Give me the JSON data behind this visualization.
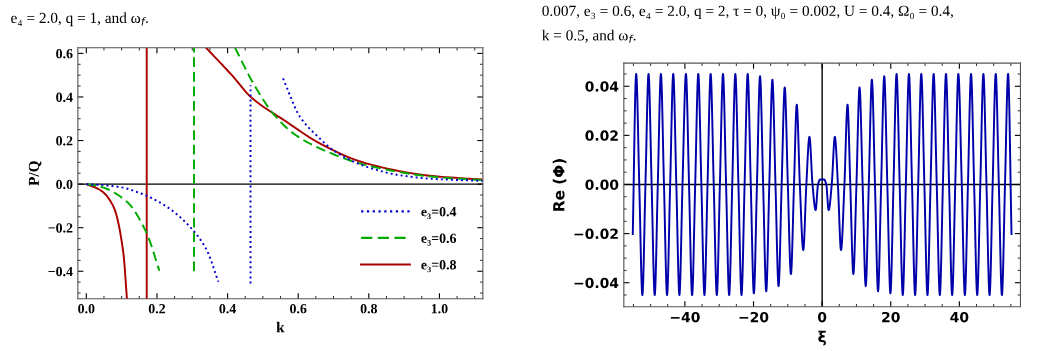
{
  "chart_data": [
    {
      "type": "line",
      "annotations": [
        "e₄ = 2.0, q = 1, and ω$_{f}$."
      ],
      "xlabel": "k",
      "ylabel": "P/Q",
      "legend": "bottom right",
      "xlim": [
        -0.024,
        1.123
      ],
      "ylim": [
        -0.526,
        0.626
      ],
      "xticks": [
        {
          "value": 0.0,
          "label": "0.0"
        },
        {
          "value": 0.05,
          "label": null
        },
        {
          "value": 0.1,
          "label": null
        },
        {
          "value": 0.15,
          "label": null
        },
        {
          "value": 0.2,
          "label": "0.2"
        },
        {
          "value": 0.25,
          "label": null
        },
        {
          "value": 0.3,
          "label": null
        },
        {
          "value": 0.35,
          "label": null
        },
        {
          "value": 0.4,
          "label": "0.4"
        },
        {
          "value": 0.45,
          "label": null
        },
        {
          "value": 0.5,
          "label": null
        },
        {
          "value": 0.55,
          "label": null
        },
        {
          "value": 0.6,
          "label": "0.6"
        },
        {
          "value": 0.65,
          "label": null
        },
        {
          "value": 0.7,
          "label": null
        },
        {
          "value": 0.75,
          "label": null
        },
        {
          "value": 0.8,
          "label": "0.8"
        },
        {
          "value": 0.85,
          "label": null
        },
        {
          "value": 0.9,
          "label": null
        },
        {
          "value": 0.95,
          "label": null
        },
        {
          "value": 1.0,
          "label": "1.0"
        },
        {
          "value": 1.05,
          "label": null
        },
        {
          "value": 1.1,
          "label": null
        }
      ],
      "yticks": [
        {
          "value": -0.5,
          "label": null
        },
        {
          "value": -0.45,
          "label": null
        },
        {
          "value": -0.4,
          "label": "−0.4"
        },
        {
          "value": -0.35,
          "label": null
        },
        {
          "value": -0.3,
          "label": null
        },
        {
          "value": -0.25,
          "label": null
        },
        {
          "value": -0.2,
          "label": "−0.2"
        },
        {
          "value": -0.15,
          "label": null
        },
        {
          "value": -0.1,
          "label": null
        },
        {
          "value": -0.05,
          "label": null
        },
        {
          "value": 0.0,
          "label": "0.0"
        },
        {
          "value": 0.05,
          "label": null
        },
        {
          "value": 0.1,
          "label": null
        },
        {
          "value": 0.15,
          "label": null
        },
        {
          "value": 0.2,
          "label": "0.2"
        },
        {
          "value": 0.25,
          "label": null
        },
        {
          "value": 0.3,
          "label": null
        },
        {
          "value": 0.35,
          "label": null
        },
        {
          "value": 0.4,
          "label": "0.4"
        },
        {
          "value": 0.45,
          "label": null
        },
        {
          "value": 0.5,
          "label": null
        },
        {
          "value": 0.55,
          "label": null
        },
        {
          "value": 0.6,
          "label": "0.6"
        }
      ],
      "ref_lines": [
        {
          "axis": "y",
          "value": 0,
          "color": "#000000"
        }
      ],
      "series": [
        {
          "name": "e₃=0.4",
          "color": "#0000cc",
          "line_style": "dotted",
          "x": [
            0,
            0.05,
            0.1,
            0.15,
            0.171,
            0.228,
            0.298,
            0.341,
            0.374
          ],
          "values": [
            0,
            -0.005,
            -0.015,
            -0.04,
            -0.054,
            -0.104,
            -0.204,
            -0.303,
            -0.448
          ]
        },
        {
          "color": "#0000cc",
          "line_style": "dotted",
          "x": [
            0.465,
            0.465
          ],
          "values": [
            -0.456,
            0.454
          ]
        },
        {
          "color": "#0000cc",
          "line_style": "dotted",
          "x": [
            0.557,
            0.605,
            0.661,
            0.699,
            0.793,
            0.887,
            0.981,
            1.122
          ],
          "values": [
            0.485,
            0.309,
            0.21,
            0.156,
            0.08,
            0.041,
            0.024,
            0.015
          ]
        },
        {
          "name": "e₃=0.6",
          "color": "#00aa00",
          "line_style": "dashed",
          "x": [
            0,
            0.04,
            0.115,
            0.171,
            0.207
          ],
          "values": [
            0,
            -0.012,
            -0.081,
            -0.226,
            -0.398
          ]
        },
        {
          "color": "#00aa00",
          "line_style": "dashed",
          "x": [
            0.305,
            0.305
          ],
          "values": [
            -0.4,
            0.626
          ]
        },
        {
          "color": "#00aa00",
          "line_style": "dashed",
          "x": [
            0.421,
            0.473,
            0.529,
            0.586,
            0.661,
            0.793,
            0.981,
            1.122
          ],
          "values": [
            0.626,
            0.462,
            0.324,
            0.233,
            0.164,
            0.087,
            0.034,
            0.018
          ]
        },
        {
          "name": "e₃=0.8",
          "color": "#aa0000",
          "line_style": "solid",
          "x": [
            0,
            0.04,
            0.077,
            0.105,
            0.115
          ],
          "values": [
            0,
            -0.028,
            -0.104,
            -0.318,
            -0.526
          ]
        },
        {
          "color": "#aa0000",
          "line_style": "solid",
          "x": [
            0.171,
            0.171
          ],
          "values": [
            -0.526,
            0.626
          ]
        },
        {
          "color": "#aa0000",
          "line_style": "solid",
          "x": [
            0.339,
            0.416,
            0.465,
            0.567,
            0.661,
            0.793,
            0.981,
            1.122
          ],
          "values": [
            0.626,
            0.493,
            0.401,
            0.286,
            0.187,
            0.095,
            0.037,
            0.021
          ]
        }
      ]
    },
    {
      "type": "line",
      "annotations": [
        "0.007, e₃ = 0.6, e₄ = 2.0, q = 2, τ = 0, ψ₀ = 0.002, U = 0.4, Ω₀ = 0.4,",
        "k = 0.5, and ω$_{f}$."
      ],
      "xlabel": "ξ",
      "ylabel": "Re (Φ)",
      "xlim": [
        -57.8,
        57.8
      ],
      "ylim": [
        -0.0498,
        0.0494
      ],
      "xticks": [
        {
          "value": -55,
          "label": null
        },
        {
          "value": -50,
          "label": null
        },
        {
          "value": -45,
          "label": null
        },
        {
          "value": -40,
          "label": "−40"
        },
        {
          "value": -35,
          "label": null
        },
        {
          "value": -30,
          "label": null
        },
        {
          "value": -25,
          "label": null
        },
        {
          "value": -20,
          "label": "−20"
        },
        {
          "value": -15,
          "label": null
        },
        {
          "value": -10,
          "label": null
        },
        {
          "value": -5,
          "label": null
        },
        {
          "value": 0,
          "label": "0"
        },
        {
          "value": 5,
          "label": null
        },
        {
          "value": 10,
          "label": null
        },
        {
          "value": 15,
          "label": null
        },
        {
          "value": 20,
          "label": "20"
        },
        {
          "value": 25,
          "label": null
        },
        {
          "value": 30,
          "label": null
        },
        {
          "value": 35,
          "label": null
        },
        {
          "value": 40,
          "label": "40"
        },
        {
          "value": 45,
          "label": null
        },
        {
          "value": 50,
          "label": null
        },
        {
          "value": 55,
          "label": null
        }
      ],
      "yticks": [
        {
          "value": -0.045,
          "label": null
        },
        {
          "value": -0.04,
          "label": "−0.04"
        },
        {
          "value": -0.035,
          "label": null
        },
        {
          "value": -0.03,
          "label": null
        },
        {
          "value": -0.025,
          "label": null
        },
        {
          "value": -0.02,
          "label": "−0.02"
        },
        {
          "value": -0.015,
          "label": null
        },
        {
          "value": -0.01,
          "label": null
        },
        {
          "value": -0.005,
          "label": null
        },
        {
          "value": 0,
          "label": "0.00"
        },
        {
          "value": 0.005,
          "label": null
        },
        {
          "value": 0.01,
          "label": null
        },
        {
          "value": 0.015,
          "label": null
        },
        {
          "value": 0.02,
          "label": "0.02"
        },
        {
          "value": 0.025,
          "label": null
        },
        {
          "value": 0.03,
          "label": null
        },
        {
          "value": 0.035,
          "label": null
        },
        {
          "value": 0.04,
          "label": "0.04"
        },
        {
          "value": 0.045,
          "label": null
        }
      ],
      "ref_lines": [
        {
          "axis": "y",
          "value": 0,
          "color": "#000000"
        },
        {
          "axis": "x",
          "value": 0,
          "color": "#000000"
        }
      ],
      "series": [
        {
          "color": "#0000aa",
          "line_style": "solid",
          "x": [
            -55.2,
            -54.2,
            -53.3,
            -52.4,
            -51.5,
            -50.6,
            -49.7,
            -48.8,
            -47.9,
            -47.0,
            -46.1,
            -45.2,
            -44.3,
            -43.4,
            -42.5,
            -41.6,
            -40.7,
            -39.7,
            -38.8,
            -37.9,
            -37.0,
            -36.1,
            -35.2,
            -34.3,
            -33.4,
            -32.5,
            -31.6,
            -30.7,
            -29.8,
            -28.9,
            -28.0,
            -27.1,
            -26.2,
            -25.3,
            -24.4,
            -23.5,
            -22.6,
            -21.7,
            -20.8,
            -19.9,
            -19.0,
            -18.1,
            -17.2,
            -16.3,
            -15.4,
            -14.5,
            -13.6,
            -12.7,
            -11.8,
            -10.9,
            -10.0,
            -9.1,
            -8.2,
            -7.4,
            -6.5,
            -5.5,
            -4.6,
            -3.7,
            -2.8,
            -1.9,
            -1.2,
            -0.6,
            0.6,
            1.2,
            1.9,
            2.8,
            3.7,
            4.6,
            5.5,
            6.5,
            7.4,
            8.2,
            9.1,
            10.0,
            10.9,
            11.8,
            12.7,
            13.6,
            14.5,
            15.4,
            16.3,
            17.2,
            18.1,
            19.0,
            19.9,
            20.8,
            21.7,
            22.6,
            23.5,
            24.4,
            25.3,
            26.2,
            27.1,
            28.0,
            28.9,
            29.8,
            30.7,
            31.6,
            32.5,
            33.4,
            34.3,
            35.2,
            36.1,
            37.0,
            37.9,
            38.8,
            39.7,
            40.7,
            41.6,
            42.5,
            43.4,
            44.3,
            45.2,
            46.1,
            47.0,
            47.9,
            48.8,
            49.7,
            50.6,
            51.5,
            52.4,
            53.3,
            54.2,
            55.2
          ],
          "values": [
            -0.0206,
            0.045,
            0,
            -0.045,
            0,
            0.045,
            0,
            -0.045,
            0,
            0.045,
            0,
            -0.045,
            0,
            0.045,
            0,
            -0.045,
            0,
            0.045,
            0,
            -0.045,
            0,
            0.045,
            0,
            -0.045,
            0,
            0.045,
            0,
            -0.045,
            0,
            0.045,
            0,
            -0.045,
            0,
            0.045,
            0,
            -0.045,
            0,
            0.045,
            0,
            -0.0443,
            0,
            0.0441,
            0,
            -0.0435,
            0,
            0.0427,
            0,
            -0.0414,
            0,
            0.0395,
            0,
            -0.0365,
            0,
            0.0325,
            0,
            -0.0267,
            0,
            0.0194,
            0,
            -0.0104,
            0,
            0.002,
            0.002,
            0,
            -0.0104,
            0,
            0.0194,
            0,
            -0.0267,
            0,
            0.0325,
            0,
            -0.0365,
            0,
            0.0395,
            0,
            -0.0414,
            0,
            0.0427,
            0,
            -0.0435,
            0,
            0.0441,
            0,
            -0.0443,
            0,
            0.045,
            0,
            -0.045,
            0,
            0.045,
            0,
            -0.045,
            0,
            0.045,
            0,
            -0.045,
            0,
            0.045,
            0,
            -0.045,
            0,
            0.045,
            0,
            -0.045,
            0,
            0.045,
            0,
            -0.045,
            0,
            0.045,
            0,
            -0.045,
            0,
            0.045,
            0,
            -0.045,
            0,
            0.045,
            0,
            -0.045,
            0,
            0.045,
            -0.0206
          ]
        }
      ]
    }
  ]
}
